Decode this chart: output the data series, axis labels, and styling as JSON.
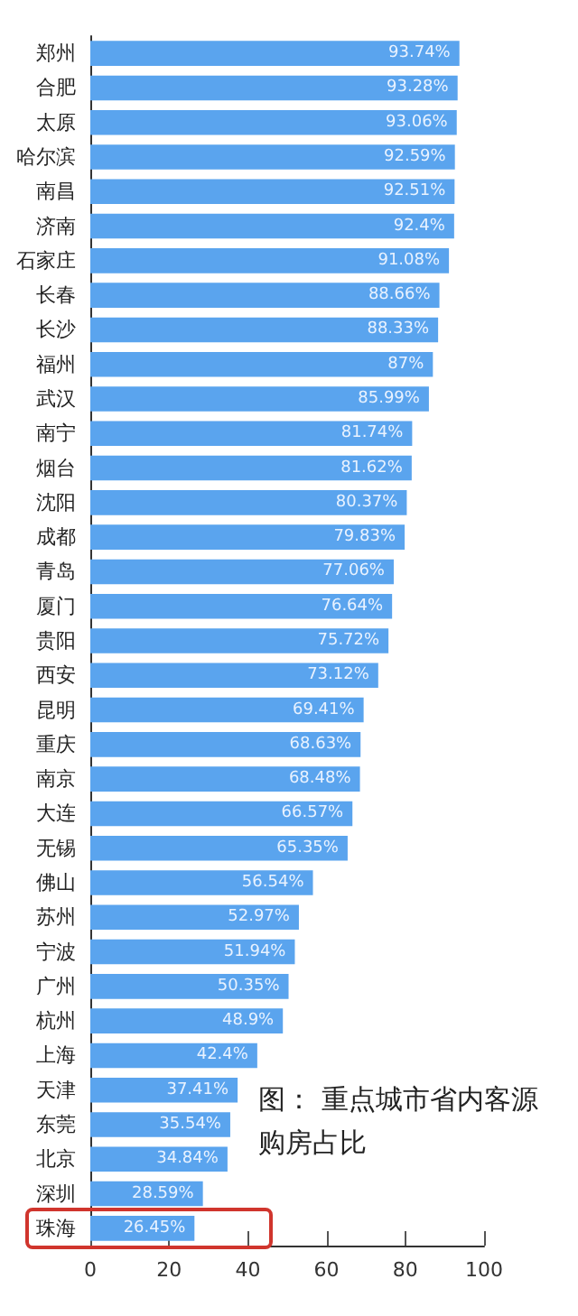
{
  "chart_data": {
    "type": "bar",
    "orientation": "horizontal",
    "title": "图： 重点城市省内客源购房占比",
    "categories": [
      "郑州",
      "合肥",
      "太原",
      "哈尔滨",
      "南昌",
      "济南",
      "石家庄",
      "长春",
      "长沙",
      "福州",
      "武汉",
      "南宁",
      "烟台",
      "沈阳",
      "成都",
      "青岛",
      "厦门",
      "贵阳",
      "西安",
      "昆明",
      "重庆",
      "南京",
      "大连",
      "无锡",
      "佛山",
      "苏州",
      "宁波",
      "广州",
      "杭州",
      "上海",
      "天津",
      "东莞",
      "北京",
      "深圳",
      "珠海"
    ],
    "values": [
      93.74,
      93.28,
      93.06,
      92.59,
      92.51,
      92.4,
      91.08,
      88.66,
      88.33,
      87,
      85.99,
      81.74,
      81.62,
      80.37,
      79.83,
      77.06,
      76.64,
      75.72,
      73.12,
      69.41,
      68.63,
      68.48,
      66.57,
      65.35,
      56.54,
      52.97,
      51.94,
      50.35,
      48.9,
      42.4,
      37.41,
      35.54,
      34.84,
      28.59,
      26.45
    ],
    "value_labels": [
      "93.74%",
      "93.28%",
      "93.06%",
      "92.59%",
      "92.51%",
      "92.4%",
      "91.08%",
      "88.66%",
      "88.33%",
      "87%",
      "85.99%",
      "81.74%",
      "81.62%",
      "80.37%",
      "79.83%",
      "77.06%",
      "76.64%",
      "75.72%",
      "73.12%",
      "69.41%",
      "68.63%",
      "68.48%",
      "66.57%",
      "65.35%",
      "56.54%",
      "52.97%",
      "51.94%",
      "50.35%",
      "48.9%",
      "42.4%",
      "37.41%",
      "35.54%",
      "34.84%",
      "28.59%",
      "26.45%"
    ],
    "color": "#5aa4ee",
    "xlim": [
      0,
      100
    ],
    "xticks": [
      0,
      20,
      40,
      60,
      80,
      100
    ],
    "grid": false
  }
}
